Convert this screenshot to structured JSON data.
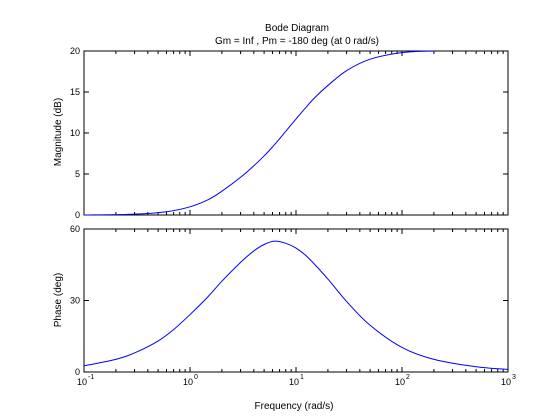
{
  "title": "Bode Diagram",
  "subtitle": "Gm = Inf ,  Pm = -180 deg (at 0 rad/s)",
  "chart_data": [
    {
      "type": "line",
      "panel": "magnitude",
      "ylabel": "Magnitude (dB)",
      "xlabel": "",
      "xscale": "log",
      "xlim": [
        0.1,
        1000
      ],
      "ylim": [
        0,
        20
      ],
      "yticks": [
        0,
        5,
        10,
        15,
        20
      ],
      "grid": false,
      "series": [
        {
          "color": "#0000ff",
          "x": [
            0.1,
            0.3,
            0.6,
            1.0,
            1.5,
            2.0,
            3.0,
            4.0,
            5.0,
            6.0,
            7.0,
            8.0,
            10.0,
            12.0,
            15.0,
            20.0,
            30.0,
            50.0,
            100.0,
            200.0
          ],
          "y": [
            0.0,
            0.1,
            0.4,
            1.0,
            1.9,
            2.9,
            4.6,
            6.0,
            7.2,
            8.3,
            9.3,
            10.2,
            11.7,
            12.9,
            14.3,
            15.8,
            17.6,
            19.0,
            19.8,
            20.0
          ]
        }
      ]
    },
    {
      "type": "line",
      "panel": "phase",
      "ylabel": "Phase (deg)",
      "xlabel": "Frequency (rad/s)",
      "xscale": "log",
      "xlim": [
        0.1,
        1000
      ],
      "ylim": [
        0,
        60
      ],
      "yticks": [
        0,
        30,
        60
      ],
      "xticks": [
        {
          "value": 0.1,
          "base": "10",
          "exp": "-1"
        },
        {
          "value": 1,
          "base": "10",
          "exp": "0"
        },
        {
          "value": 10,
          "base": "10",
          "exp": "1"
        },
        {
          "value": 100,
          "base": "10",
          "exp": "2"
        },
        {
          "value": 1000,
          "base": "10",
          "exp": "3"
        }
      ],
      "grid": false,
      "series": [
        {
          "color": "#0000ff",
          "x": [
            0.1,
            0.2,
            0.3,
            0.5,
            0.7,
            1.0,
            1.5,
            2.0,
            3.0,
            4.0,
            5.0,
            6.3,
            8.0,
            10.0,
            13.0,
            20.0,
            30.0,
            50.0,
            100.0,
            200.0,
            500.0,
            1000.0
          ],
          "y": [
            2.6,
            5.3,
            8.0,
            13.0,
            17.8,
            24.1,
            31.9,
            38.1,
            46.0,
            50.8,
            53.5,
            54.9,
            54.0,
            52.0,
            48.0,
            39.0,
            29.6,
            19.6,
            10.3,
            5.3,
            2.2,
            1.1
          ]
        }
      ]
    }
  ]
}
